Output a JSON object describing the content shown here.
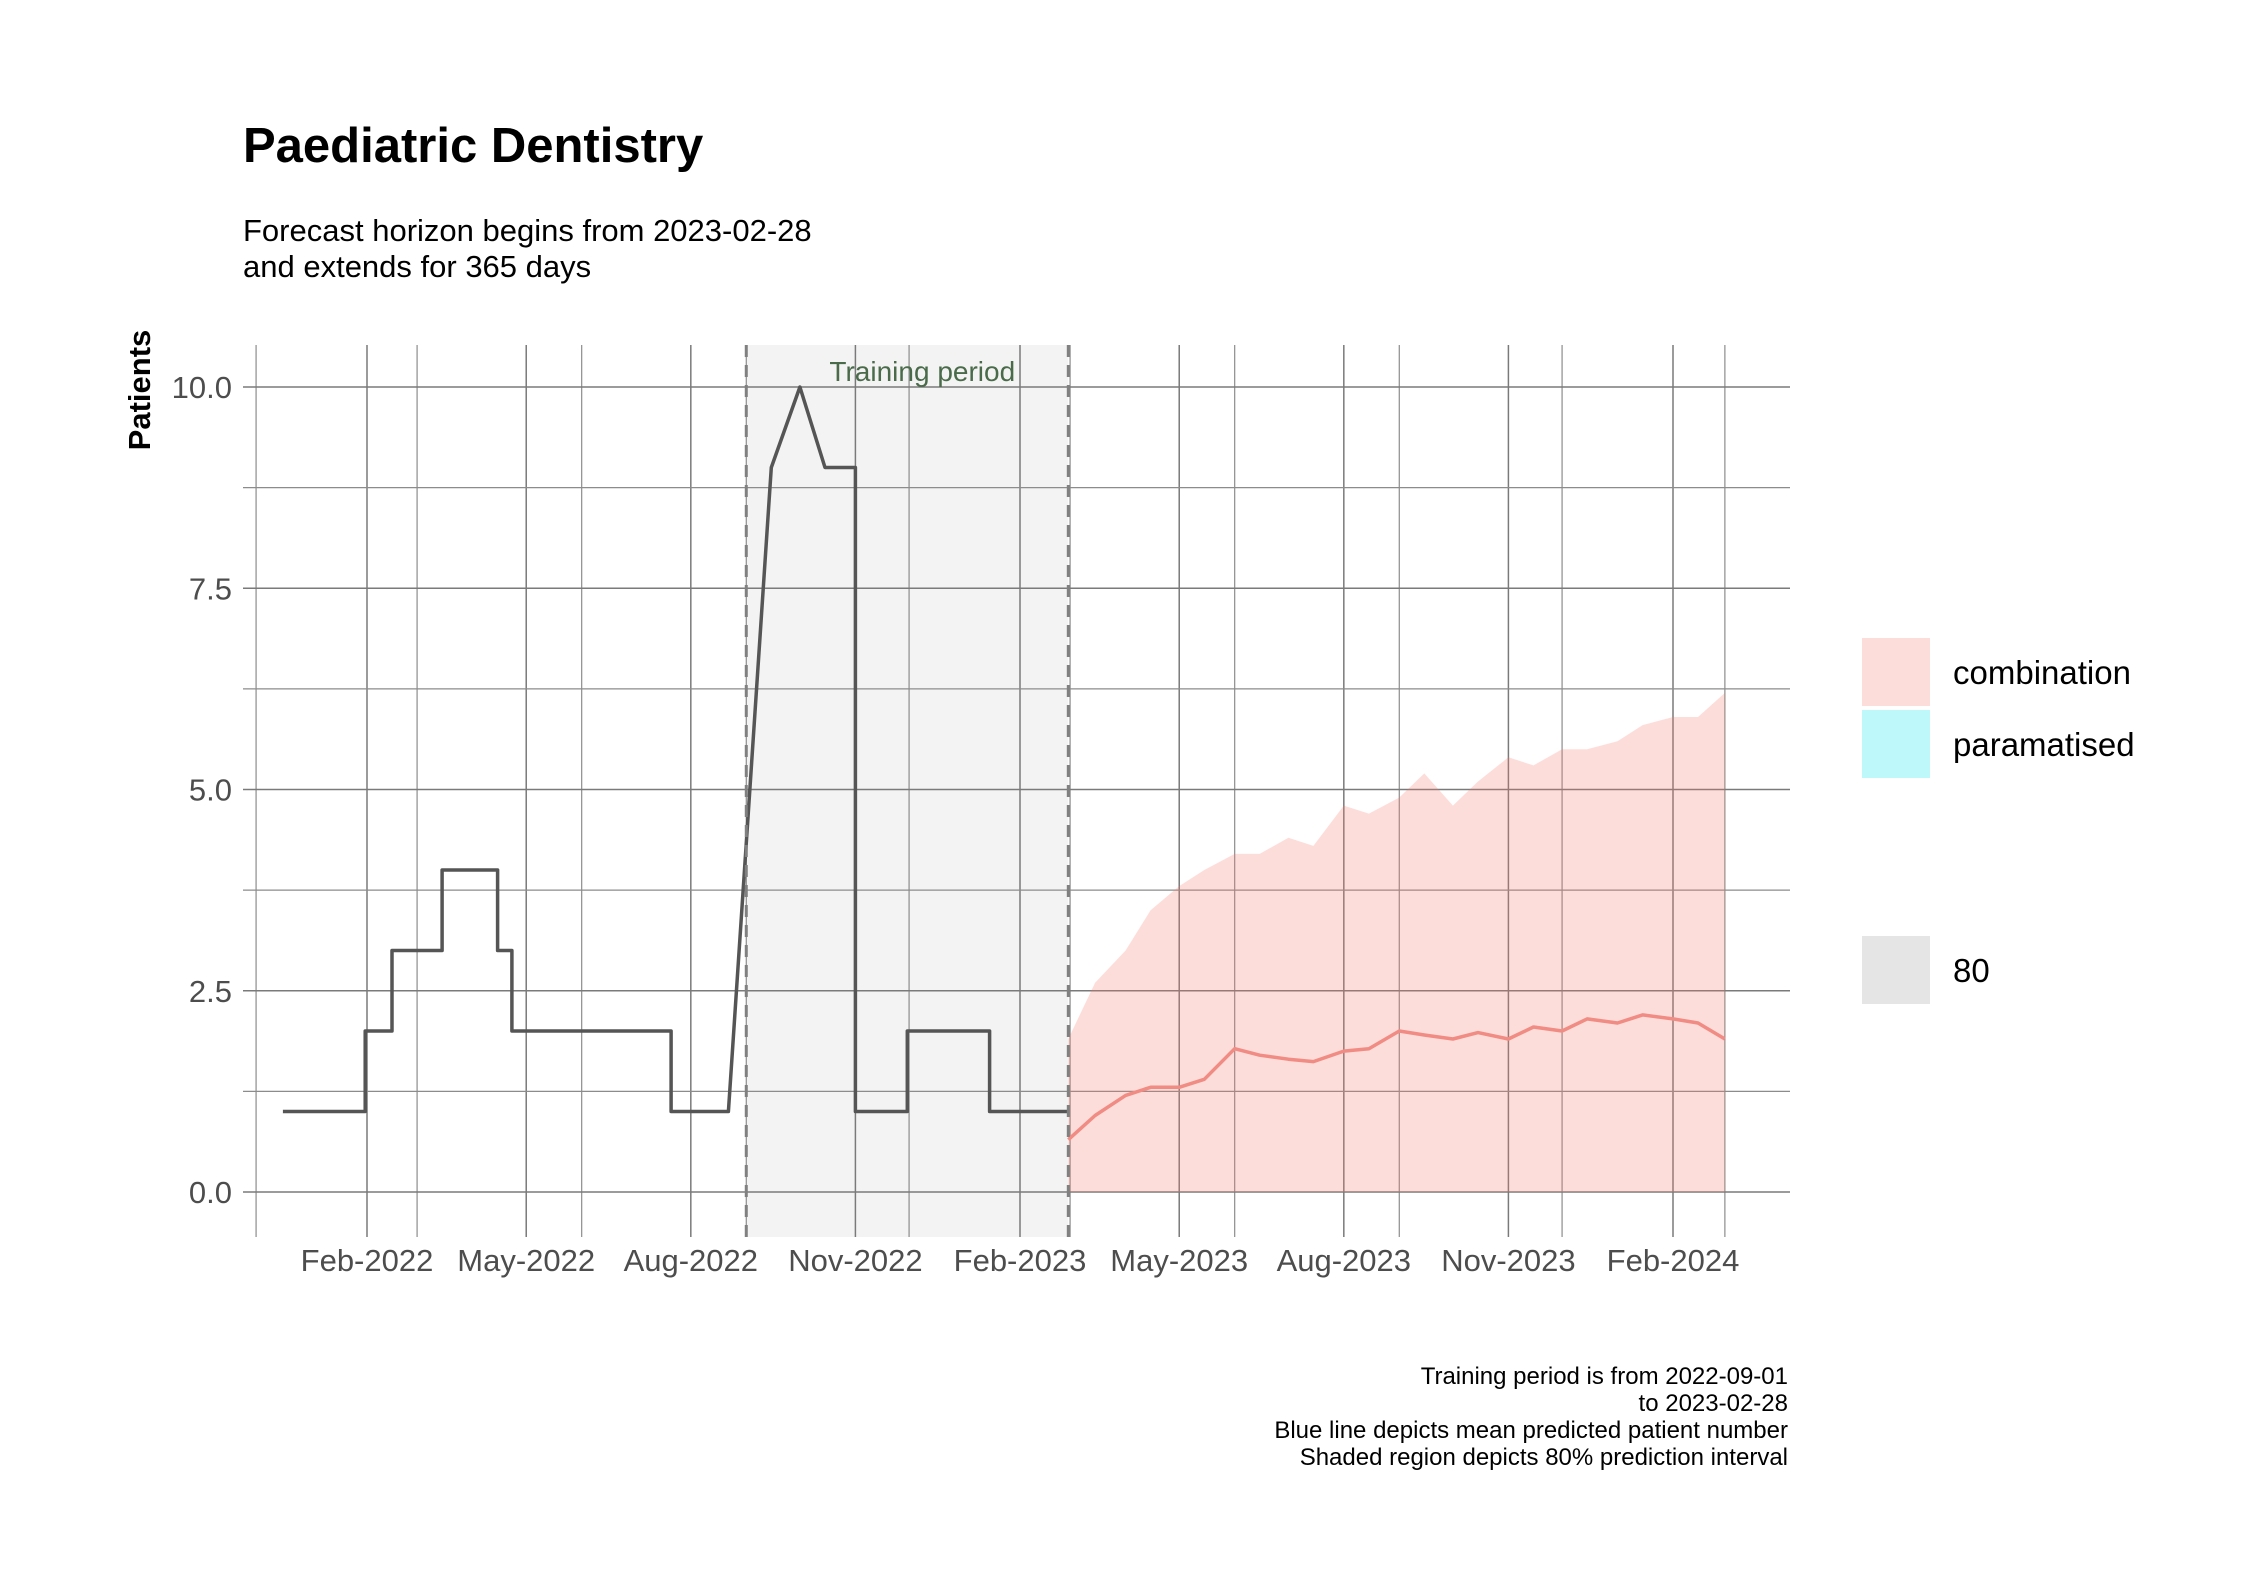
{
  "title": "Paediatric Dentistry",
  "subtitle_lines": [
    "Forecast horizon begins from 2023-02-28",
    "and extends for 365 days"
  ],
  "caption_lines": [
    "Training period is from 2022-09-01",
    "to 2023-02-28",
    "Blue line depicts mean predicted patient number",
    "Shaded region depicts 80% prediction interval"
  ],
  "colors": {
    "observed": "#555555",
    "forecast_mean": "#F08C84",
    "interval_fill": "#F8766D",
    "training_shade": "#EBEBEB",
    "paramatised": "#00E5F0"
  },
  "chart_data": {
    "type": "line",
    "ylabel": "Patients",
    "xlabel": "",
    "ylim": [
      0,
      10
    ],
    "y_ticks": [
      "0.0",
      "2.5",
      "5.0",
      "7.5",
      "10.0"
    ],
    "x_ticks": [
      "Feb-2022",
      "May-2022",
      "Aug-2022",
      "Nov-2022",
      "Feb-2023",
      "May-2023",
      "Aug-2023",
      "Nov-2023",
      "Feb-2024"
    ],
    "training_period": {
      "label": "Training period",
      "start": "2022-09-01",
      "end": "2023-02-28"
    },
    "observed": {
      "x": [
        "2021-12-16",
        "2022-01-31",
        "2022-01-31",
        "2022-02-15",
        "2022-02-15",
        "2022-03-15",
        "2022-03-15",
        "2022-04-15",
        "2022-04-15",
        "2022-04-23",
        "2022-04-23",
        "2022-05-01",
        "2022-05-01",
        "2022-07-21",
        "2022-07-21",
        "2022-08-22",
        "2022-09-15",
        "2022-09-15",
        "2022-10-01",
        "2022-10-01",
        "2022-10-15",
        "2022-10-15",
        "2022-11-01",
        "2022-11-01",
        "2022-11-30",
        "2022-11-30",
        "2023-01-15",
        "2023-01-15",
        "2023-02-28"
      ],
      "y": [
        1,
        1,
        2,
        2,
        3,
        3,
        4,
        4,
        3,
        3,
        2,
        2,
        2,
        2,
        1,
        1,
        9,
        9,
        10,
        10,
        9,
        9,
        9,
        1,
        1,
        2,
        2,
        1,
        1
      ]
    },
    "forecast": {
      "x": [
        "2023-02-28",
        "2023-03-15",
        "2023-04-01",
        "2023-04-15",
        "2023-05-01",
        "2023-05-15",
        "2023-06-01",
        "2023-06-15",
        "2023-07-01",
        "2023-07-15",
        "2023-08-01",
        "2023-08-15",
        "2023-09-01",
        "2023-09-15",
        "2023-10-01",
        "2023-10-15",
        "2023-11-01",
        "2023-11-15",
        "2023-12-01",
        "2023-12-15",
        "2024-01-01",
        "2024-01-15",
        "2024-02-01",
        "2024-02-15",
        "2024-03-01"
      ],
      "mean": [
        0.65,
        0.95,
        1.2,
        1.3,
        1.3,
        1.4,
        1.78,
        1.7,
        1.65,
        1.62,
        1.75,
        1.78,
        2.0,
        1.95,
        1.9,
        1.98,
        1.9,
        2.05,
        2.0,
        2.15,
        2.1,
        2.2,
        2.15,
        2.1,
        1.9
      ],
      "lower": [
        0,
        0,
        0,
        0,
        0,
        0,
        0,
        0,
        0,
        0,
        0,
        0,
        0,
        0,
        0,
        0,
        0,
        0,
        0,
        0,
        0,
        0,
        0,
        0,
        0
      ],
      "upper": [
        1.9,
        2.6,
        3.0,
        3.5,
        3.8,
        4.0,
        4.2,
        4.2,
        4.4,
        4.3,
        4.8,
        4.7,
        4.9,
        5.2,
        4.8,
        5.1,
        5.4,
        5.3,
        5.5,
        5.5,
        5.6,
        5.8,
        5.9,
        5.9,
        6.2
      ]
    },
    "legend": {
      "fill_title": "",
      "fill_items": [
        "combination",
        "paramatised"
      ],
      "level_title": "",
      "level_items": [
        "80"
      ],
      "position": "right"
    }
  }
}
